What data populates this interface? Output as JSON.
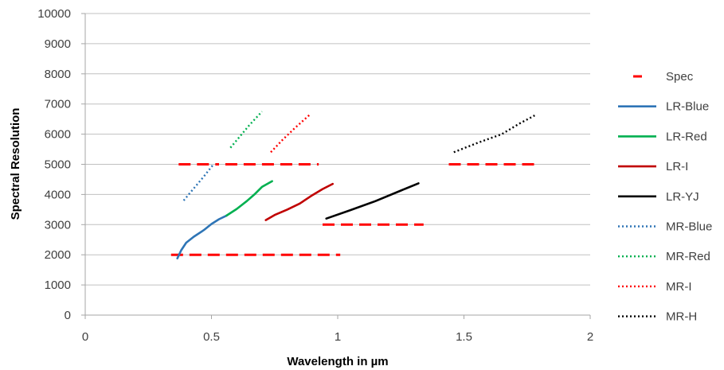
{
  "chart_data": {
    "type": "line",
    "xlabel": "Wavelength in  µm",
    "ylabel": "Spectral Resolution",
    "xlim": [
      0,
      2
    ],
    "ylim": [
      0,
      10000
    ],
    "x_ticks": [
      "0",
      "0.5",
      "1",
      "1.5",
      "2"
    ],
    "x_tick_values": [
      0,
      0.5,
      1,
      1.5,
      2
    ],
    "y_ticks": [
      "0",
      "1000",
      "2000",
      "3000",
      "4000",
      "5000",
      "6000",
      "7000",
      "8000",
      "9000",
      "10000"
    ],
    "y_tick_values": [
      0,
      1000,
      2000,
      3000,
      4000,
      5000,
      6000,
      7000,
      8000,
      9000,
      10000
    ],
    "grid": "horizontal",
    "legend_position": "right",
    "series": [
      {
        "name": "Spec",
        "color": "#ff0000",
        "style": "dashed",
        "segments": [
          [
            [
              0.34,
              2000
            ],
            [
              1.01,
              2000
            ]
          ],
          [
            [
              0.37,
              5000
            ],
            [
              0.53,
              5000
            ]
          ],
          [
            [
              0.555,
              5000
            ],
            [
              0.925,
              5000
            ]
          ],
          [
            [
              0.94,
              3000
            ],
            [
              1.34,
              3000
            ]
          ],
          [
            [
              1.44,
              5000
            ],
            [
              1.8,
              5000
            ]
          ]
        ]
      },
      {
        "name": "LR-Blue",
        "color": "#2e75b6",
        "style": "solid",
        "segments": [
          [
            [
              0.365,
              1880
            ],
            [
              0.38,
              2150
            ],
            [
              0.4,
              2400
            ],
            [
              0.43,
              2600
            ],
            [
              0.47,
              2820
            ],
            [
              0.5,
              3020
            ],
            [
              0.53,
              3180
            ],
            [
              0.56,
              3300
            ]
          ]
        ]
      },
      {
        "name": "LR-Red",
        "color": "#00b050",
        "style": "solid",
        "segments": [
          [
            [
              0.56,
              3300
            ],
            [
              0.6,
              3520
            ],
            [
              0.64,
              3780
            ],
            [
              0.67,
              4000
            ],
            [
              0.7,
              4250
            ],
            [
              0.74,
              4440
            ]
          ]
        ]
      },
      {
        "name": "LR-I",
        "color": "#c00000",
        "style": "solid",
        "segments": [
          [
            [
              0.715,
              3150
            ],
            [
              0.75,
              3320
            ],
            [
              0.8,
              3500
            ],
            [
              0.85,
              3700
            ],
            [
              0.9,
              3980
            ],
            [
              0.94,
              4180
            ],
            [
              0.98,
              4350
            ]
          ]
        ]
      },
      {
        "name": "LR-YJ",
        "color": "#000000",
        "style": "solid",
        "segments": [
          [
            [
              0.955,
              3200
            ],
            [
              1.05,
              3480
            ],
            [
              1.15,
              3780
            ],
            [
              1.25,
              4130
            ],
            [
              1.32,
              4370
            ]
          ]
        ]
      },
      {
        "name": "MR-Blue",
        "color": "#2e75b6",
        "style": "dotted",
        "segments": [
          [
            [
              0.39,
              3800
            ],
            [
              0.43,
              4200
            ],
            [
              0.47,
              4600
            ],
            [
              0.51,
              5020
            ]
          ]
        ]
      },
      {
        "name": "MR-Red",
        "color": "#00b050",
        "style": "dotted",
        "segments": [
          [
            [
              0.575,
              5550
            ],
            [
              0.61,
              5900
            ],
            [
              0.65,
              6300
            ],
            [
              0.7,
              6750
            ]
          ]
        ]
      },
      {
        "name": "MR-I",
        "color": "#ff0000",
        "style": "dotted",
        "segments": [
          [
            [
              0.735,
              5400
            ],
            [
              0.78,
              5800
            ],
            [
              0.83,
              6200
            ],
            [
              0.89,
              6650
            ]
          ]
        ]
      },
      {
        "name": "MR-H",
        "color": "#000000",
        "style": "dotted",
        "segments": [
          [
            [
              1.46,
              5400
            ],
            [
              1.55,
              5700
            ],
            [
              1.65,
              6000
            ],
            [
              1.72,
              6350
            ],
            [
              1.78,
              6620
            ]
          ]
        ]
      }
    ]
  }
}
